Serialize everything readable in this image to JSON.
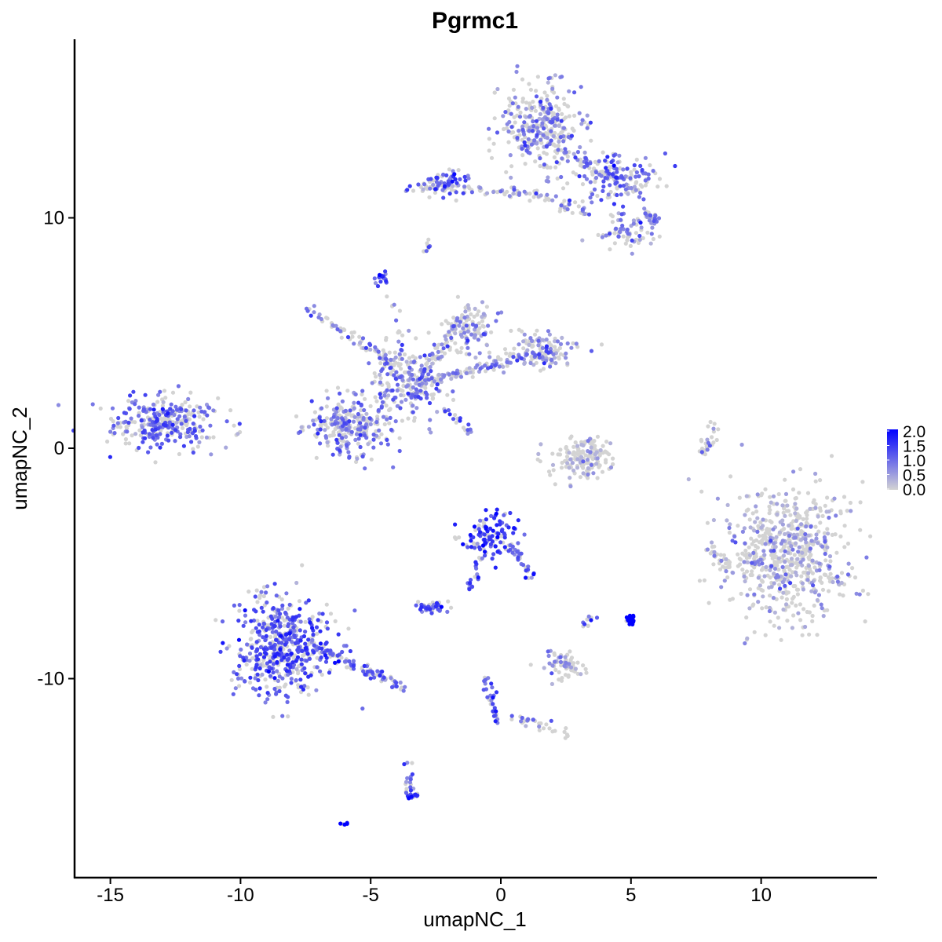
{
  "chart_data": {
    "type": "scatter",
    "title": "Pgrmc1",
    "xlabel": "umapNC_1",
    "ylabel": "umapNC_2",
    "xlim": [
      -16.3,
      14.4
    ],
    "ylim": [
      -18.5,
      17.7
    ],
    "xticks": [
      -15,
      -10,
      -5,
      0,
      5,
      10
    ],
    "yticks": [
      -10,
      0,
      10
    ],
    "xtick_labels": [
      "-15",
      "-10",
      "-5",
      "0",
      "5",
      "10"
    ],
    "ytick_labels": [
      "-10",
      "0",
      "10"
    ],
    "grid": false,
    "legend": {
      "placement": "right",
      "type": "colorbar",
      "range": [
        0,
        2
      ],
      "tick_labels": [
        "2.0",
        "1.5",
        "1.0",
        "0.5",
        "0.0"
      ],
      "low_color": "#D3D3D3",
      "high_color": "#0000FF"
    },
    "clusters": [
      {
        "center": [
          -12.8,
          1.1
        ],
        "sd": [
          1.0,
          0.55
        ],
        "n": 320,
        "mean_expression": 0.75
      },
      {
        "center": [
          -8.4,
          -8.6
        ],
        "sd": [
          0.9,
          1.1
        ],
        "n": 520,
        "mean_expression": 0.9
      },
      {
        "center": [
          -5.8,
          0.9
        ],
        "sd": [
          0.8,
          0.6
        ],
        "n": 260,
        "mean_expression": 0.6
      },
      {
        "center": [
          -3.6,
          2.8
        ],
        "sd": [
          0.7,
          0.8
        ],
        "n": 200,
        "mean_expression": 0.6
      },
      {
        "center": [
          -1.2,
          5.2
        ],
        "sd": [
          0.5,
          0.6
        ],
        "n": 100,
        "mean_expression": 0.4
      },
      {
        "center": [
          1.6,
          4.3
        ],
        "sd": [
          0.7,
          0.4
        ],
        "n": 120,
        "mean_expression": 0.35
      },
      {
        "center": [
          1.5,
          14.0
        ],
        "sd": [
          0.8,
          0.9
        ],
        "n": 330,
        "mean_expression": 0.5
      },
      {
        "center": [
          4.4,
          11.8
        ],
        "sd": [
          0.8,
          0.5
        ],
        "n": 150,
        "mean_expression": 0.75
      },
      {
        "center": [
          -2.3,
          11.5
        ],
        "sd": [
          0.5,
          0.3
        ],
        "n": 70,
        "mean_expression": 0.8
      },
      {
        "center": [
          4.8,
          9.4
        ],
        "sd": [
          0.5,
          0.4
        ],
        "n": 70,
        "mean_expression": 0.5
      },
      {
        "center": [
          11.0,
          -4.6
        ],
        "sd": [
          1.15,
          1.4
        ],
        "n": 650,
        "mean_expression": 0.25
      },
      {
        "center": [
          3.2,
          -0.4
        ],
        "sd": [
          0.6,
          0.45
        ],
        "n": 150,
        "mean_expression": 0.15
      },
      {
        "center": [
          -0.4,
          -3.8
        ],
        "sd": [
          0.5,
          0.45
        ],
        "n": 110,
        "mean_expression": 1.1
      },
      {
        "center": [
          5.0,
          -7.4
        ],
        "sd": [
          0.08,
          0.12
        ],
        "n": 30,
        "mean_expression": 1.9
      },
      {
        "center": [
          -2.6,
          -6.9
        ],
        "sd": [
          0.3,
          0.15
        ],
        "n": 40,
        "mean_expression": 0.8
      },
      {
        "center": [
          2.4,
          -9.4
        ],
        "sd": [
          0.4,
          0.3
        ],
        "n": 70,
        "mean_expression": 0.3
      },
      {
        "center": [
          -4.6,
          7.4
        ],
        "sd": [
          0.15,
          0.15
        ],
        "n": 15,
        "mean_expression": 0.9
      },
      {
        "center": [
          -3.4,
          -15.0
        ],
        "sd": [
          0.2,
          0.15
        ],
        "n": 20,
        "mean_expression": 1.1
      },
      {
        "center": [
          -6.0,
          -16.3
        ],
        "sd": [
          0.05,
          0.03
        ],
        "n": 6,
        "mean_expression": 1.8
      }
    ],
    "trails": [
      {
        "from": [
          -7.4,
          6.0
        ],
        "to": [
          -4.0,
          3.6
        ],
        "n": 80,
        "mean_expression": 0.6
      },
      {
        "from": [
          -1.2,
          6.2
        ],
        "to": [
          -3.2,
          2.8
        ],
        "n": 60,
        "mean_expression": 0.6
      },
      {
        "from": [
          -3.2,
          2.8
        ],
        "to": [
          2.0,
          4.2
        ],
        "n": 120,
        "mean_expression": 0.4
      },
      {
        "from": [
          -4.3,
          6.8
        ],
        "to": [
          -3.5,
          3.2
        ],
        "n": 20,
        "mean_expression": 0.7
      },
      {
        "from": [
          -2.0,
          1.6
        ],
        "to": [
          -1.2,
          0.7
        ],
        "n": 20,
        "mean_expression": 0.8
      },
      {
        "from": [
          -3.2,
          11.3
        ],
        "to": [
          1.2,
          11.1
        ],
        "n": 60,
        "mean_expression": 0.5
      },
      {
        "from": [
          1.2,
          11.1
        ],
        "to": [
          3.3,
          10.2
        ],
        "n": 40,
        "mean_expression": 0.6
      },
      {
        "from": [
          2.2,
          13.0
        ],
        "to": [
          5.5,
          11.0
        ],
        "n": 50,
        "mean_expression": 0.5
      },
      {
        "from": [
          5.5,
          10.3
        ],
        "to": [
          6.0,
          9.8
        ],
        "n": 25,
        "mean_expression": 0.6
      },
      {
        "from": [
          -2.8,
          9.2
        ],
        "to": [
          -2.8,
          8.6
        ],
        "n": 8,
        "mean_expression": 0.7
      },
      {
        "from": [
          -7.2,
          -8.6
        ],
        "to": [
          -3.8,
          -10.4
        ],
        "n": 90,
        "mean_expression": 0.8
      },
      {
        "from": [
          -1.2,
          -6.2
        ],
        "to": [
          -0.6,
          -4.2
        ],
        "n": 25,
        "mean_expression": 0.9
      },
      {
        "from": [
          0.4,
          -4.2
        ],
        "to": [
          1.2,
          -5.6
        ],
        "n": 30,
        "mean_expression": 0.9
      },
      {
        "from": [
          -0.5,
          -10.0
        ],
        "to": [
          -0.1,
          -12.0
        ],
        "n": 30,
        "mean_expression": 0.9
      },
      {
        "from": [
          0.4,
          -11.7
        ],
        "to": [
          2.7,
          -12.4
        ],
        "n": 30,
        "mean_expression": 0.5
      },
      {
        "from": [
          -3.6,
          -13.5
        ],
        "to": [
          -3.5,
          -15.2
        ],
        "n": 15,
        "mean_expression": 1.0
      },
      {
        "from": [
          7.8,
          -0.2
        ],
        "to": [
          8.4,
          1.2
        ],
        "n": 25,
        "mean_expression": 0.3
      },
      {
        "from": [
          7.9,
          -4.2
        ],
        "to": [
          8.8,
          -5.4
        ],
        "n": 20,
        "mean_expression": 0.2
      },
      {
        "from": [
          3.2,
          -7.7
        ],
        "to": [
          3.6,
          -7.4
        ],
        "n": 10,
        "mean_expression": 0.8
      }
    ]
  }
}
